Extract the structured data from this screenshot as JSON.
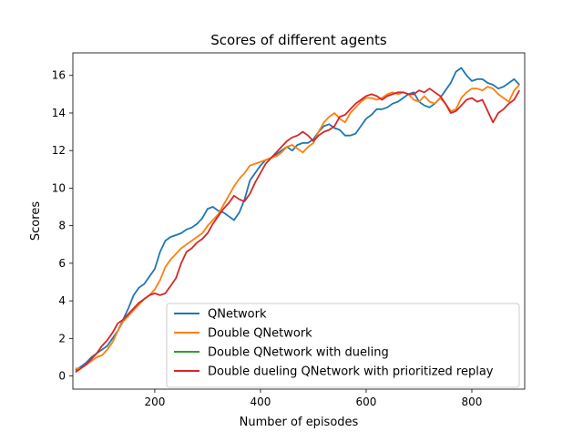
{
  "chart_data": {
    "type": "line",
    "title": "Scores of different agents",
    "xlabel": "Number of episodes",
    "ylabel": "Scores",
    "xlim": [
      45,
      900
    ],
    "ylim": [
      -0.7,
      17.2
    ],
    "xticks": [
      200,
      400,
      600,
      800
    ],
    "yticks": [
      0,
      2,
      4,
      6,
      8,
      10,
      12,
      14,
      16
    ],
    "grid": false,
    "legend_position": "lower-right",
    "series": [
      {
        "name": "QNetwork",
        "color": "#1f77b4",
        "points": [
          [
            50,
            0.3
          ],
          [
            60,
            0.5
          ],
          [
            70,
            0.7
          ],
          [
            80,
            1.0
          ],
          [
            90,
            1.2
          ],
          [
            100,
            1.4
          ],
          [
            110,
            1.6
          ],
          [
            120,
            2.0
          ],
          [
            130,
            2.4
          ],
          [
            140,
            3.0
          ],
          [
            150,
            3.6
          ],
          [
            160,
            4.3
          ],
          [
            170,
            4.7
          ],
          [
            180,
            4.9
          ],
          [
            190,
            5.3
          ],
          [
            200,
            5.7
          ],
          [
            210,
            6.6
          ],
          [
            220,
            7.2
          ],
          [
            230,
            7.4
          ],
          [
            240,
            7.5
          ],
          [
            250,
            7.6
          ],
          [
            260,
            7.8
          ],
          [
            270,
            7.9
          ],
          [
            280,
            8.1
          ],
          [
            290,
            8.4
          ],
          [
            300,
            8.9
          ],
          [
            310,
            9.0
          ],
          [
            320,
            8.8
          ],
          [
            330,
            8.7
          ],
          [
            340,
            8.5
          ],
          [
            350,
            8.3
          ],
          [
            360,
            8.7
          ],
          [
            370,
            9.4
          ],
          [
            380,
            10.4
          ],
          [
            390,
            10.8
          ],
          [
            400,
            11.2
          ],
          [
            410,
            11.5
          ],
          [
            420,
            11.6
          ],
          [
            430,
            11.8
          ],
          [
            440,
            12.0
          ],
          [
            450,
            12.2
          ],
          [
            460,
            12.0
          ],
          [
            470,
            12.3
          ],
          [
            480,
            12.4
          ],
          [
            490,
            12.4
          ],
          [
            500,
            12.6
          ],
          [
            510,
            13.0
          ],
          [
            520,
            13.3
          ],
          [
            530,
            13.4
          ],
          [
            540,
            13.2
          ],
          [
            550,
            13.1
          ],
          [
            560,
            12.8
          ],
          [
            570,
            12.8
          ],
          [
            580,
            12.9
          ],
          [
            590,
            13.3
          ],
          [
            600,
            13.7
          ],
          [
            610,
            13.9
          ],
          [
            620,
            14.2
          ],
          [
            630,
            14.2
          ],
          [
            640,
            14.3
          ],
          [
            650,
            14.5
          ],
          [
            660,
            14.6
          ],
          [
            670,
            14.8
          ],
          [
            680,
            15.0
          ],
          [
            690,
            15.1
          ],
          [
            700,
            14.6
          ],
          [
            710,
            14.4
          ],
          [
            720,
            14.3
          ],
          [
            730,
            14.5
          ],
          [
            740,
            14.8
          ],
          [
            750,
            15.2
          ],
          [
            760,
            15.6
          ],
          [
            770,
            16.2
          ],
          [
            780,
            16.4
          ],
          [
            790,
            16.0
          ],
          [
            800,
            15.7
          ],
          [
            810,
            15.8
          ],
          [
            820,
            15.8
          ],
          [
            830,
            15.6
          ],
          [
            840,
            15.5
          ],
          [
            850,
            15.3
          ],
          [
            860,
            15.4
          ],
          [
            870,
            15.6
          ],
          [
            880,
            15.8
          ],
          [
            890,
            15.5
          ]
        ]
      },
      {
        "name": "Double QNetwork",
        "color": "#ff7f0e",
        "points": [
          [
            50,
            0.4
          ],
          [
            60,
            0.4
          ],
          [
            70,
            0.6
          ],
          [
            80,
            0.8
          ],
          [
            90,
            1.0
          ],
          [
            100,
            1.1
          ],
          [
            110,
            1.4
          ],
          [
            120,
            1.8
          ],
          [
            130,
            2.4
          ],
          [
            140,
            2.9
          ],
          [
            150,
            3.2
          ],
          [
            160,
            3.5
          ],
          [
            170,
            3.8
          ],
          [
            180,
            4.1
          ],
          [
            190,
            4.3
          ],
          [
            200,
            4.6
          ],
          [
            210,
            5.1
          ],
          [
            220,
            5.8
          ],
          [
            230,
            6.2
          ],
          [
            240,
            6.5
          ],
          [
            250,
            6.8
          ],
          [
            260,
            7.0
          ],
          [
            270,
            7.2
          ],
          [
            280,
            7.4
          ],
          [
            290,
            7.6
          ],
          [
            300,
            8.0
          ],
          [
            310,
            8.3
          ],
          [
            320,
            8.6
          ],
          [
            330,
            9.1
          ],
          [
            340,
            9.6
          ],
          [
            350,
            10.1
          ],
          [
            360,
            10.5
          ],
          [
            370,
            10.8
          ],
          [
            380,
            11.2
          ],
          [
            390,
            11.3
          ],
          [
            400,
            11.4
          ],
          [
            410,
            11.5
          ],
          [
            420,
            11.6
          ],
          [
            430,
            11.7
          ],
          [
            440,
            11.9
          ],
          [
            450,
            12.2
          ],
          [
            460,
            12.3
          ],
          [
            470,
            12.1
          ],
          [
            480,
            11.9
          ],
          [
            490,
            12.2
          ],
          [
            500,
            12.4
          ],
          [
            510,
            13.0
          ],
          [
            520,
            13.5
          ],
          [
            530,
            13.8
          ],
          [
            540,
            14.0
          ],
          [
            550,
            13.7
          ],
          [
            560,
            13.5
          ],
          [
            570,
            14.0
          ],
          [
            580,
            14.3
          ],
          [
            590,
            14.6
          ],
          [
            600,
            14.8
          ],
          [
            610,
            14.8
          ],
          [
            620,
            14.7
          ],
          [
            630,
            14.8
          ],
          [
            640,
            15.0
          ],
          [
            650,
            15.1
          ],
          [
            660,
            15.0
          ],
          [
            670,
            15.1
          ],
          [
            680,
            15.0
          ],
          [
            690,
            14.7
          ],
          [
            700,
            14.6
          ],
          [
            710,
            14.9
          ],
          [
            720,
            14.6
          ],
          [
            730,
            14.5
          ],
          [
            740,
            14.8
          ],
          [
            750,
            14.5
          ],
          [
            760,
            14.1
          ],
          [
            770,
            14.2
          ],
          [
            780,
            14.8
          ],
          [
            790,
            15.1
          ],
          [
            800,
            15.3
          ],
          [
            810,
            15.3
          ],
          [
            820,
            15.2
          ],
          [
            830,
            15.4
          ],
          [
            840,
            15.3
          ],
          [
            850,
            15.0
          ],
          [
            860,
            14.8
          ],
          [
            870,
            14.6
          ],
          [
            880,
            15.2
          ],
          [
            890,
            15.5
          ]
        ]
      },
      {
        "name": "Double QNetwork with dueling",
        "color": "#2ca02c",
        "points": []
      },
      {
        "name": "Double dueling QNetwork with prioritized replay",
        "color": "#d62728",
        "points": [
          [
            50,
            0.2
          ],
          [
            60,
            0.4
          ],
          [
            70,
            0.6
          ],
          [
            80,
            0.9
          ],
          [
            90,
            1.2
          ],
          [
            100,
            1.6
          ],
          [
            110,
            1.9
          ],
          [
            120,
            2.3
          ],
          [
            130,
            2.8
          ],
          [
            140,
            3.0
          ],
          [
            150,
            3.3
          ],
          [
            160,
            3.6
          ],
          [
            170,
            3.9
          ],
          [
            180,
            4.1
          ],
          [
            190,
            4.3
          ],
          [
            200,
            4.4
          ],
          [
            210,
            4.3
          ],
          [
            220,
            4.4
          ],
          [
            230,
            4.8
          ],
          [
            240,
            5.2
          ],
          [
            250,
            6.0
          ],
          [
            260,
            6.6
          ],
          [
            270,
            6.8
          ],
          [
            280,
            7.1
          ],
          [
            290,
            7.3
          ],
          [
            300,
            7.6
          ],
          [
            310,
            8.1
          ],
          [
            320,
            8.5
          ],
          [
            330,
            8.9
          ],
          [
            340,
            9.2
          ],
          [
            350,
            9.6
          ],
          [
            360,
            9.4
          ],
          [
            370,
            9.3
          ],
          [
            380,
            9.7
          ],
          [
            390,
            10.3
          ],
          [
            400,
            10.8
          ],
          [
            410,
            11.3
          ],
          [
            420,
            11.6
          ],
          [
            430,
            11.9
          ],
          [
            440,
            12.2
          ],
          [
            450,
            12.5
          ],
          [
            460,
            12.7
          ],
          [
            470,
            12.8
          ],
          [
            480,
            13.0
          ],
          [
            490,
            12.8
          ],
          [
            500,
            12.5
          ],
          [
            510,
            12.8
          ],
          [
            520,
            13.0
          ],
          [
            530,
            13.1
          ],
          [
            540,
            13.3
          ],
          [
            550,
            13.8
          ],
          [
            560,
            13.9
          ],
          [
            570,
            14.2
          ],
          [
            580,
            14.5
          ],
          [
            590,
            14.7
          ],
          [
            600,
            14.9
          ],
          [
            610,
            15.0
          ],
          [
            620,
            14.9
          ],
          [
            630,
            14.7
          ],
          [
            640,
            14.9
          ],
          [
            650,
            15.0
          ],
          [
            660,
            15.1
          ],
          [
            670,
            15.1
          ],
          [
            680,
            15.0
          ],
          [
            690,
            15.0
          ],
          [
            700,
            15.2
          ],
          [
            710,
            15.1
          ],
          [
            720,
            15.3
          ],
          [
            730,
            15.1
          ],
          [
            740,
            14.9
          ],
          [
            750,
            14.5
          ],
          [
            760,
            14.0
          ],
          [
            770,
            14.1
          ],
          [
            780,
            14.4
          ],
          [
            790,
            14.7
          ],
          [
            800,
            14.8
          ],
          [
            810,
            14.6
          ],
          [
            820,
            14.7
          ],
          [
            830,
            14.1
          ],
          [
            840,
            13.5
          ],
          [
            850,
            14.0
          ],
          [
            860,
            14.2
          ],
          [
            870,
            14.5
          ],
          [
            880,
            14.7
          ],
          [
            890,
            15.2
          ]
        ]
      }
    ]
  }
}
